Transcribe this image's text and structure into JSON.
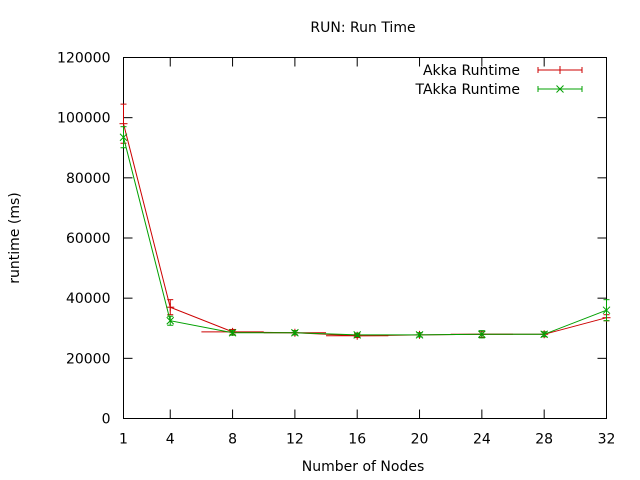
{
  "chart_data": {
    "type": "line",
    "title": "RUN: Run Time",
    "xlabel": "Number of Nodes",
    "ylabel": "runtime (ms)",
    "xlim": [
      1,
      32
    ],
    "ylim": [
      0,
      120000
    ],
    "x_ticks": [
      1,
      4,
      8,
      12,
      16,
      20,
      24,
      28,
      32
    ],
    "y_ticks": [
      0,
      20000,
      40000,
      60000,
      80000,
      100000,
      120000
    ],
    "legend_position": "top-right",
    "grid": false,
    "series": [
      {
        "name": "Akka Runtime",
        "color": "#cc0000",
        "marker": "plus",
        "x": [
          1,
          4,
          8,
          12,
          16,
          20,
          24,
          28,
          32
        ],
        "y": [
          98000,
          37000,
          28800,
          28500,
          27500,
          27800,
          28000,
          28000,
          33500
        ],
        "err": [
          6500,
          2500,
          800,
          700,
          600,
          700,
          1000,
          800,
          1000
        ],
        "xerr": [
          0,
          0,
          2,
          2,
          2,
          0,
          2,
          0,
          0
        ]
      },
      {
        "name": "TAkka Runtime",
        "color": "#00a000",
        "marker": "cross",
        "x": [
          1,
          4,
          8,
          12,
          16,
          20,
          24,
          28,
          32
        ],
        "y": [
          93500,
          32500,
          28500,
          28500,
          27800,
          27800,
          28000,
          28000,
          36000
        ],
        "err": [
          3500,
          1500,
          800,
          700,
          600,
          700,
          1200,
          800,
          3500
        ],
        "xerr": [
          0,
          0,
          0,
          0,
          0,
          0,
          0,
          0,
          0
        ]
      }
    ]
  }
}
